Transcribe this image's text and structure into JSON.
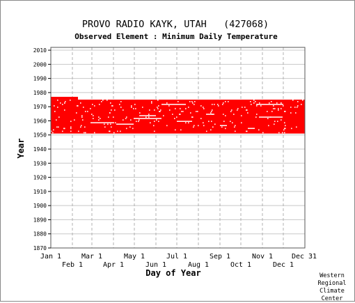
{
  "chart_data": {
    "type": "scatter",
    "title": "PROVO RADIO KAYK, UTAH   (427068)",
    "subtitle": "Observed Element : Minimum Daily Temperature",
    "xlabel": "Day of Year",
    "ylabel": "Year",
    "ylim": [
      1870,
      2012
    ],
    "yticks": [
      1870,
      1880,
      1890,
      1900,
      1910,
      1920,
      1930,
      1940,
      1950,
      1960,
      1970,
      1980,
      1990,
      2000,
      2010
    ],
    "xlim": [
      1,
      366
    ],
    "xticks_top_row": [
      {
        "label": "Jan 1",
        "day": 1
      },
      {
        "label": "Mar 1",
        "day": 60
      },
      {
        "label": "May 1",
        "day": 121
      },
      {
        "label": "Jul 1",
        "day": 182
      },
      {
        "label": "Sep 1",
        "day": 244
      },
      {
        "label": "Nov 1",
        "day": 305
      },
      {
        "label": "Dec 31",
        "day": 365
      }
    ],
    "xticks_bottom_row": [
      {
        "label": "Feb 1",
        "day": 32
      },
      {
        "label": "Apr 1",
        "day": 91
      },
      {
        "label": "Jun 1",
        "day": 152
      },
      {
        "label": "Aug 1",
        "day": 213
      },
      {
        "label": "Oct 1",
        "day": 274
      },
      {
        "label": "Dec 1",
        "day": 335
      }
    ],
    "grid": true,
    "series": [
      {
        "color": "#ff0000",
        "coverage": "daily observations present nearly every day",
        "year_start": 1951,
        "year_end": 1975,
        "year_end_early_jan": 1977,
        "gaps": [
          {
            "year": 1958,
            "day_start": 58,
            "day_end": 92
          },
          {
            "year": 1957,
            "day_start": 95,
            "day_end": 120
          },
          {
            "year": 1961,
            "day_start": 120,
            "day_end": 160
          },
          {
            "year": 1963,
            "day_start": 128,
            "day_end": 152
          },
          {
            "year": 1971,
            "day_start": 160,
            "day_end": 195
          },
          {
            "year": 1959,
            "day_start": 182,
            "day_end": 204
          },
          {
            "year": 1964,
            "day_start": 224,
            "day_end": 236
          },
          {
            "year": 1956,
            "day_start": 244,
            "day_end": 254
          },
          {
            "year": 1971,
            "day_start": 296,
            "day_end": 335
          },
          {
            "year": 1962,
            "day_start": 300,
            "day_end": 334
          },
          {
            "year": 1954,
            "day_start": 284,
            "day_end": 294
          }
        ]
      }
    ]
  },
  "credit": {
    "line1": "Western",
    "line2": "Regional",
    "line3": "Climate",
    "line4": "Center"
  }
}
